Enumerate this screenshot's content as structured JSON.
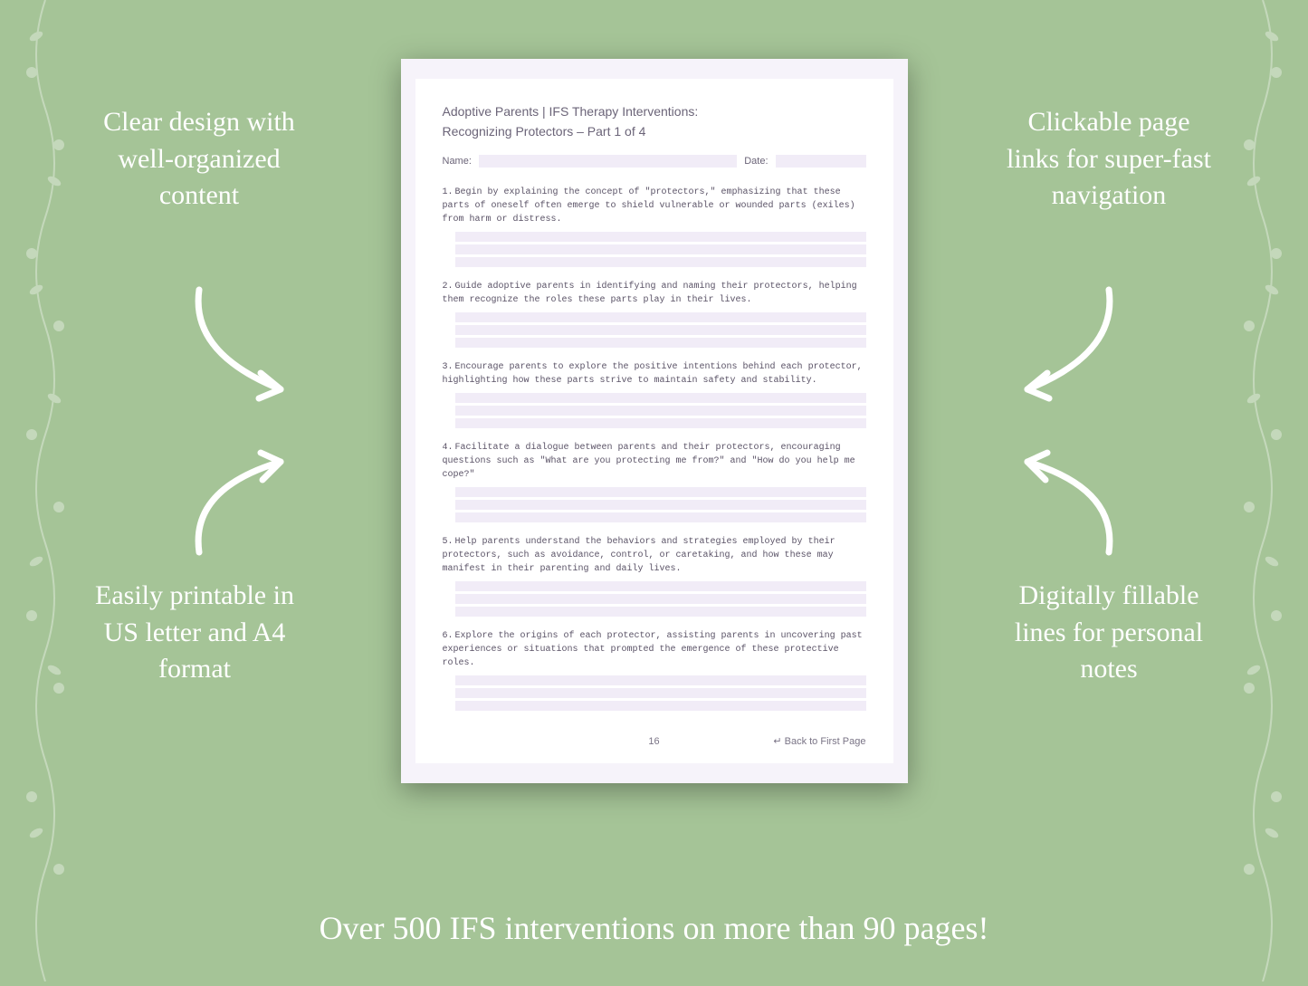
{
  "background_color": "#a5c497",
  "text_color": "#ffffff",
  "callouts": {
    "top_left": "Clear design with well-organized content",
    "top_right": "Clickable page links for super-fast navigation",
    "bottom_left": "Easily printable in US letter and A4 format",
    "bottom_right": "Digitally fillable lines for personal notes"
  },
  "tagline": "Over 500 IFS interventions on more than 90 pages!",
  "document": {
    "page_bg": "#f6f3fa",
    "inner_bg": "#ffffff",
    "fill_line_color": "#f1ecf7",
    "text_color": "#6b6478",
    "mono_text_color": "#5a5266",
    "title": "Adoptive Parents | IFS Therapy Interventions:",
    "subtitle": "Recognizing Protectors – Part 1 of 4",
    "name_label": "Name:",
    "date_label": "Date:",
    "items": [
      "Begin by explaining the concept of \"protectors,\" emphasizing that these parts of oneself often emerge to shield vulnerable or wounded parts (exiles) from harm or distress.",
      "Guide adoptive parents in identifying and naming their protectors, helping them recognize the roles these parts play in their lives.",
      "Encourage parents to explore the positive intentions behind each protector, highlighting how these parts strive to maintain safety and stability.",
      "Facilitate a dialogue between parents and their protectors, encouraging questions such as \"What are you protecting me from?\" and \"How do you help me cope?\"",
      "Help parents understand the behaviors and strategies employed by their protectors, such as avoidance, control, or caretaking, and how these may manifest in their parenting and daily lives.",
      "Explore the origins of each protector, assisting parents in uncovering past experiences or situations that prompted the emergence of these protective roles."
    ],
    "page_number": "16",
    "back_link": "↵ Back to First Page",
    "lines_per_item": 3
  },
  "callout_fontsize": 30,
  "tagline_fontsize": 36,
  "doc_title_fontsize": 14,
  "doc_item_fontsize": 10
}
